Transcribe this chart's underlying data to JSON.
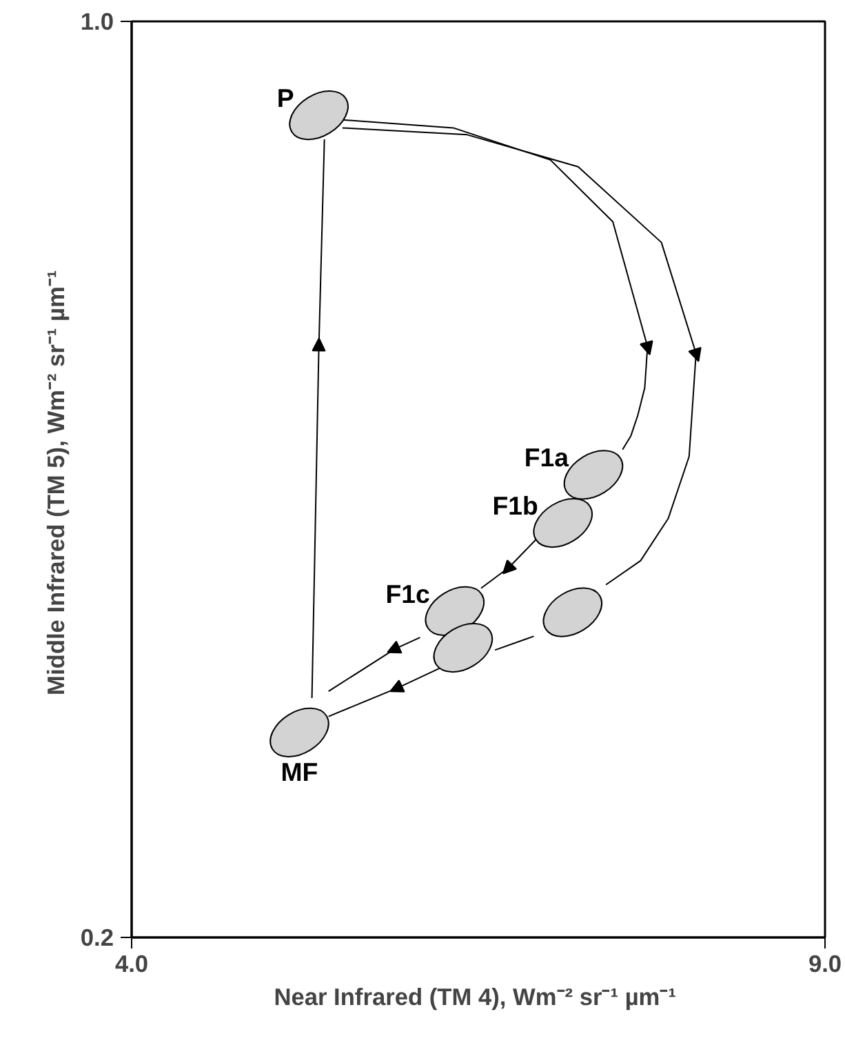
{
  "chart_data": {
    "type": "scatter",
    "xlabel": "Near Infrared (TM 4), Wm⁻² sr⁻¹  µm⁻¹",
    "ylabel": "Middle Infrared (TM 5), Wm⁻² sr⁻¹  µm⁻¹",
    "xlim": [
      4.0,
      9.0
    ],
    "ylim": [
      0.2,
      1.0
    ],
    "xticks": [
      {
        "value": 4.0,
        "label": "4.0"
      },
      {
        "value": 9.0,
        "label": "9.0"
      }
    ],
    "yticks": [
      {
        "value": 0.2,
        "label": "0.2"
      },
      {
        "value": 1.0,
        "label": "1.0"
      }
    ],
    "series": [
      {
        "type": "line",
        "color": "#000000",
        "x": [
          5.3,
          5.35,
          5.39
        ],
        "values": [
          0.409,
          0.716,
          0.897
        ]
      },
      {
        "type": "line",
        "color": "#000000",
        "x": [
          5.52,
          6.32,
          7.02,
          7.47,
          7.72,
          7.7,
          7.65,
          7.6,
          7.54
        ],
        "values": [
          0.914,
          0.907,
          0.879,
          0.825,
          0.716,
          0.68,
          0.656,
          0.638,
          0.626
        ]
      },
      {
        "type": "line",
        "color": "#000000",
        "x": [
          5.52,
          6.42,
          7.22,
          7.82,
          8.07,
          8.02,
          7.87,
          7.67,
          7.42
        ],
        "values": [
          0.907,
          0.901,
          0.873,
          0.807,
          0.71,
          0.62,
          0.566,
          0.529,
          0.508
        ]
      },
      {
        "type": "line",
        "color": "#000000",
        "x": [
          6.92,
          6.72,
          6.52
        ],
        "values": [
          0.548,
          0.523,
          0.505
        ]
      },
      {
        "type": "line",
        "color": "#000000",
        "x": [
          6.08,
          5.9,
          5.42
        ],
        "values": [
          0.462,
          0.452,
          0.415
        ]
      },
      {
        "type": "line",
        "color": "#000000",
        "x": [
          6.9,
          6.62
        ],
        "values": [
          0.463,
          0.451
        ]
      },
      {
        "type": "line",
        "color": "#000000",
        "x": [
          6.22,
          5.92,
          5.42
        ],
        "values": [
          0.435,
          0.418,
          0.393
        ]
      },
      {
        "marker": "circle",
        "color": "#d3d3d3",
        "x": [
          5.35,
          7.33,
          7.11,
          6.33,
          6.39,
          7.18,
          5.21
        ],
        "values": [
          0.918,
          0.604,
          0.562,
          0.485,
          0.453,
          0.484,
          0.379
        ],
        "value_labels": [
          "P",
          "F1a",
          "F1b",
          "F1c",
          null,
          null,
          "MF"
        ]
      }
    ]
  }
}
